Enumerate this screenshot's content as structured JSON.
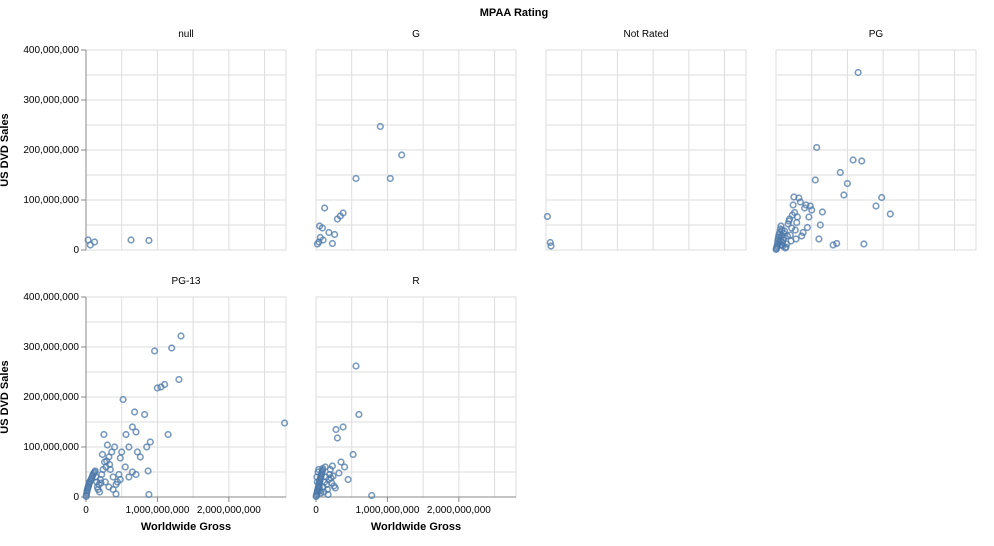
{
  "chart_data": {
    "type": "scatter",
    "title": "MPAA Rating",
    "xlabel": "Worldwide Gross",
    "ylabel": "US DVD Sales",
    "xlim": [
      0,
      2800000000
    ],
    "ylim": [
      0,
      400000000
    ],
    "x_ticks": [
      0,
      1000000000,
      2000000000
    ],
    "x_tick_labels": [
      "0",
      "1,000,000,000",
      "2,000,000,000"
    ],
    "y_ticks": [
      0,
      100000000,
      200000000,
      300000000,
      400000000
    ],
    "y_tick_labels": [
      "0",
      "100,000,000",
      "200,000,000",
      "300,000,000",
      "400,000,000"
    ],
    "grid": true,
    "point_color": "#4c78a8",
    "facets": [
      {
        "name": "null",
        "points": [
          [
            30000000,
            20000000
          ],
          [
            60000000,
            10000000
          ],
          [
            120000000,
            16000000
          ],
          [
            630000000,
            20000000
          ],
          [
            880000000,
            19000000
          ]
        ]
      },
      {
        "name": "G",
        "points": [
          [
            20000000,
            12000000
          ],
          [
            40000000,
            16000000
          ],
          [
            50000000,
            48000000
          ],
          [
            90000000,
            44000000
          ],
          [
            120000000,
            84000000
          ],
          [
            180000000,
            35000000
          ],
          [
            230000000,
            13000000
          ],
          [
            260000000,
            31000000
          ],
          [
            300000000,
            62000000
          ],
          [
            340000000,
            68000000
          ],
          [
            380000000,
            74000000
          ],
          [
            560000000,
            143000000
          ],
          [
            900000000,
            247000000
          ],
          [
            1040000000,
            143000000
          ],
          [
            1200000000,
            190000000
          ],
          [
            60000000,
            25000000
          ],
          [
            100000000,
            20000000
          ]
        ]
      },
      {
        "name": "Not Rated",
        "points": [
          [
            20000000,
            67000000
          ],
          [
            60000000,
            15000000
          ],
          [
            70000000,
            8000000
          ]
        ]
      },
      {
        "name": "PG",
        "points": [
          [
            2000000,
            1000000
          ],
          [
            5000000,
            3000000
          ],
          [
            10000000,
            5000000
          ],
          [
            15000000,
            8000000
          ],
          [
            20000000,
            12000000
          ],
          [
            25000000,
            18000000
          ],
          [
            30000000,
            22000000
          ],
          [
            35000000,
            26000000
          ],
          [
            40000000,
            30000000
          ],
          [
            50000000,
            35000000
          ],
          [
            60000000,
            42000000
          ],
          [
            70000000,
            48000000
          ],
          [
            80000000,
            10000000
          ],
          [
            90000000,
            15000000
          ],
          [
            100000000,
            20000000
          ],
          [
            110000000,
            25000000
          ],
          [
            120000000,
            38000000
          ],
          [
            130000000,
            4000000
          ],
          [
            140000000,
            6000000
          ],
          [
            150000000,
            12000000
          ],
          [
            160000000,
            28000000
          ],
          [
            170000000,
            52000000
          ],
          [
            180000000,
            58000000
          ],
          [
            190000000,
            62000000
          ],
          [
            200000000,
            30000000
          ],
          [
            210000000,
            18000000
          ],
          [
            220000000,
            44000000
          ],
          [
            230000000,
            70000000
          ],
          [
            240000000,
            90000000
          ],
          [
            250000000,
            106000000
          ],
          [
            260000000,
            75000000
          ],
          [
            270000000,
            40000000
          ],
          [
            280000000,
            22000000
          ],
          [
            290000000,
            55000000
          ],
          [
            300000000,
            66000000
          ],
          [
            320000000,
            104000000
          ],
          [
            340000000,
            96000000
          ],
          [
            360000000,
            28000000
          ],
          [
            380000000,
            35000000
          ],
          [
            400000000,
            84000000
          ],
          [
            420000000,
            90000000
          ],
          [
            440000000,
            45000000
          ],
          [
            460000000,
            66000000
          ],
          [
            480000000,
            88000000
          ],
          [
            500000000,
            80000000
          ],
          [
            550000000,
            140000000
          ],
          [
            570000000,
            205000000
          ],
          [
            600000000,
            22000000
          ],
          [
            620000000,
            50000000
          ],
          [
            650000000,
            76000000
          ],
          [
            800000000,
            10000000
          ],
          [
            850000000,
            13000000
          ],
          [
            900000000,
            155000000
          ],
          [
            950000000,
            110000000
          ],
          [
            1000000000,
            133000000
          ],
          [
            1080000000,
            180000000
          ],
          [
            1150000000,
            355000000
          ],
          [
            1200000000,
            178000000
          ],
          [
            1230000000,
            12000000
          ],
          [
            1400000000,
            88000000
          ],
          [
            1480000000,
            105000000
          ],
          [
            1600000000,
            72000000
          ],
          [
            45000000,
            15000000
          ],
          [
            75000000,
            28000000
          ],
          [
            95000000,
            8000000
          ],
          [
            105000000,
            33000000
          ],
          [
            65000000,
            20000000
          ],
          [
            85000000,
            40000000
          ],
          [
            55000000,
            10000000
          ]
        ]
      },
      {
        "name": "PG-13",
        "points": [
          [
            2000000,
            1000000
          ],
          [
            5000000,
            4000000
          ],
          [
            10000000,
            8000000
          ],
          [
            15000000,
            12000000
          ],
          [
            20000000,
            15000000
          ],
          [
            25000000,
            18000000
          ],
          [
            30000000,
            20000000
          ],
          [
            35000000,
            22000000
          ],
          [
            40000000,
            25000000
          ],
          [
            45000000,
            28000000
          ],
          [
            50000000,
            30000000
          ],
          [
            60000000,
            32000000
          ],
          [
            70000000,
            35000000
          ],
          [
            80000000,
            38000000
          ],
          [
            90000000,
            42000000
          ],
          [
            100000000,
            45000000
          ],
          [
            110000000,
            48000000
          ],
          [
            120000000,
            50000000
          ],
          [
            130000000,
            52000000
          ],
          [
            140000000,
            40000000
          ],
          [
            150000000,
            30000000
          ],
          [
            160000000,
            20000000
          ],
          [
            170000000,
            15000000
          ],
          [
            180000000,
            25000000
          ],
          [
            190000000,
            10000000
          ],
          [
            200000000,
            35000000
          ],
          [
            210000000,
            28000000
          ],
          [
            220000000,
            45000000
          ],
          [
            230000000,
            85000000
          ],
          [
            250000000,
            125000000
          ],
          [
            260000000,
            70000000
          ],
          [
            280000000,
            60000000
          ],
          [
            300000000,
            104000000
          ],
          [
            320000000,
            80000000
          ],
          [
            340000000,
            55000000
          ],
          [
            360000000,
            90000000
          ],
          [
            380000000,
            40000000
          ],
          [
            400000000,
            100000000
          ],
          [
            420000000,
            6000000
          ],
          [
            440000000,
            30000000
          ],
          [
            460000000,
            45000000
          ],
          [
            480000000,
            78000000
          ],
          [
            500000000,
            90000000
          ],
          [
            520000000,
            195000000
          ],
          [
            560000000,
            125000000
          ],
          [
            600000000,
            100000000
          ],
          [
            650000000,
            140000000
          ],
          [
            680000000,
            170000000
          ],
          [
            700000000,
            130000000
          ],
          [
            720000000,
            90000000
          ],
          [
            760000000,
            80000000
          ],
          [
            820000000,
            165000000
          ],
          [
            850000000,
            100000000
          ],
          [
            870000000,
            52000000
          ],
          [
            880000000,
            5000000
          ],
          [
            900000000,
            110000000
          ],
          [
            960000000,
            292000000
          ],
          [
            1000000000,
            218000000
          ],
          [
            1050000000,
            220000000
          ],
          [
            1100000000,
            225000000
          ],
          [
            1150000000,
            125000000
          ],
          [
            1200000000,
            298000000
          ],
          [
            1300000000,
            235000000
          ],
          [
            1330000000,
            322000000
          ],
          [
            2780000000,
            148000000
          ],
          [
            600000000,
            40000000
          ],
          [
            650000000,
            50000000
          ],
          [
            700000000,
            45000000
          ],
          [
            550000000,
            60000000
          ],
          [
            480000000,
            35000000
          ],
          [
            420000000,
            25000000
          ],
          [
            380000000,
            15000000
          ],
          [
            320000000,
            20000000
          ],
          [
            270000000,
            30000000
          ],
          [
            240000000,
            55000000
          ],
          [
            290000000,
            72000000
          ],
          [
            330000000,
            65000000
          ]
        ]
      },
      {
        "name": "R",
        "points": [
          [
            2000000,
            1000000
          ],
          [
            5000000,
            3000000
          ],
          [
            10000000,
            6000000
          ],
          [
            15000000,
            9000000
          ],
          [
            20000000,
            12000000
          ],
          [
            25000000,
            15000000
          ],
          [
            30000000,
            18000000
          ],
          [
            35000000,
            21000000
          ],
          [
            40000000,
            24000000
          ],
          [
            45000000,
            27000000
          ],
          [
            50000000,
            30000000
          ],
          [
            55000000,
            33000000
          ],
          [
            60000000,
            36000000
          ],
          [
            65000000,
            39000000
          ],
          [
            70000000,
            42000000
          ],
          [
            75000000,
            45000000
          ],
          [
            80000000,
            48000000
          ],
          [
            85000000,
            51000000
          ],
          [
            90000000,
            54000000
          ],
          [
            95000000,
            57000000
          ],
          [
            100000000,
            20000000
          ],
          [
            110000000,
            10000000
          ],
          [
            120000000,
            30000000
          ],
          [
            130000000,
            60000000
          ],
          [
            140000000,
            40000000
          ],
          [
            150000000,
            25000000
          ],
          [
            160000000,
            15000000
          ],
          [
            170000000,
            5000000
          ],
          [
            180000000,
            35000000
          ],
          [
            190000000,
            45000000
          ],
          [
            200000000,
            55000000
          ],
          [
            210000000,
            38000000
          ],
          [
            220000000,
            28000000
          ],
          [
            230000000,
            62000000
          ],
          [
            240000000,
            42000000
          ],
          [
            250000000,
            22000000
          ],
          [
            270000000,
            18000000
          ],
          [
            280000000,
            135000000
          ],
          [
            300000000,
            118000000
          ],
          [
            320000000,
            48000000
          ],
          [
            350000000,
            70000000
          ],
          [
            380000000,
            140000000
          ],
          [
            400000000,
            60000000
          ],
          [
            450000000,
            35000000
          ],
          [
            520000000,
            85000000
          ],
          [
            560000000,
            262000000
          ],
          [
            600000000,
            165000000
          ],
          [
            780000000,
            3000000
          ],
          [
            12000000,
            40000000
          ],
          [
            18000000,
            30000000
          ],
          [
            28000000,
            50000000
          ],
          [
            38000000,
            55000000
          ],
          [
            48000000,
            20000000
          ],
          [
            58000000,
            12000000
          ],
          [
            68000000,
            8000000
          ]
        ]
      }
    ]
  }
}
